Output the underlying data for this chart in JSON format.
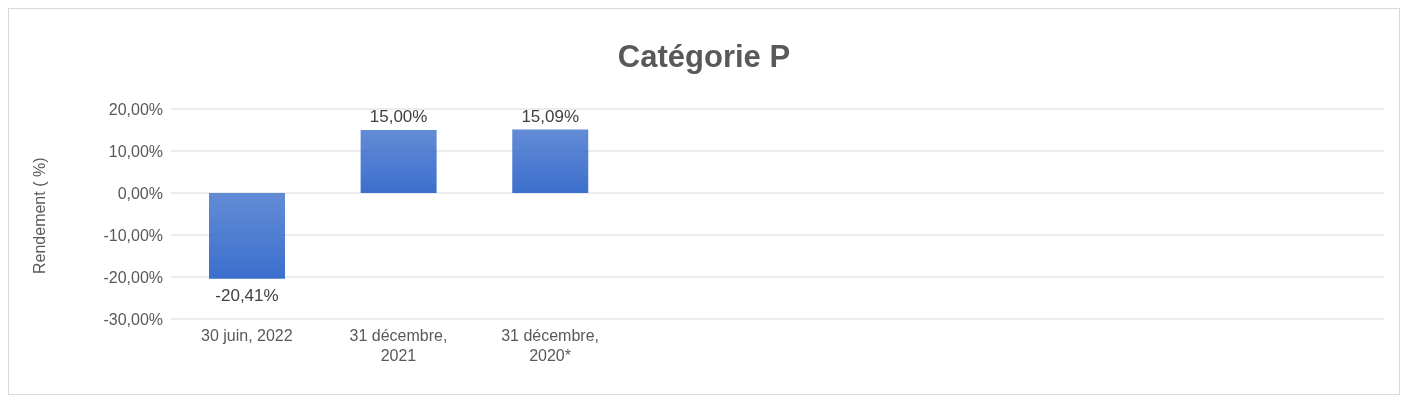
{
  "chart_data": {
    "type": "bar",
    "title": "Catégorie P",
    "ylabel": "Rendement ( %)",
    "categories": [
      "30 juin, 2022",
      "31 décembre, 2021",
      "31 décembre, 2020*",
      null,
      null,
      null,
      null,
      null
    ],
    "values": [
      -20.41,
      15.0,
      15.09,
      null,
      null,
      null,
      null,
      null
    ],
    "value_labels": [
      "-20,41%",
      "15,00%",
      "15,09%",
      null,
      null,
      null,
      null,
      null
    ],
    "color": "#3c6fcc",
    "ylim": [
      -30,
      20
    ],
    "yticks": [
      {
        "value": -30,
        "label": "-30,00%"
      },
      {
        "value": -20,
        "label": "-20,00%"
      },
      {
        "value": -10,
        "label": "-10,00%"
      },
      {
        "value": 0,
        "label": "0,00%"
      },
      {
        "value": 10,
        "label": "10,00%"
      },
      {
        "value": 20,
        "label": "20,00%"
      }
    ],
    "grid": "y"
  }
}
